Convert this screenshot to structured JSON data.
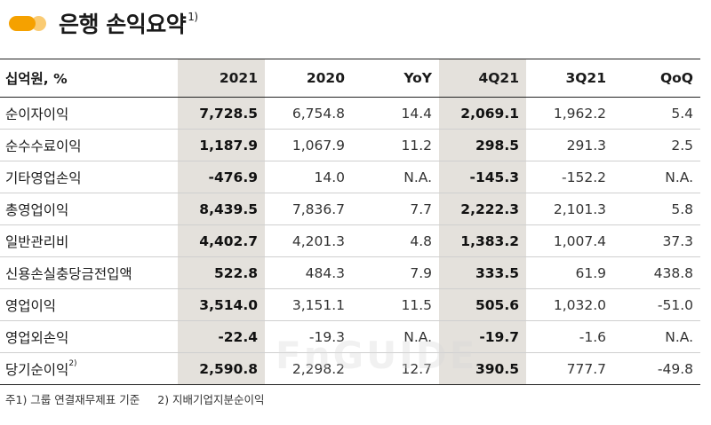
{
  "header": {
    "title": "은행 손익요약",
    "title_note": "1)"
  },
  "table": {
    "unit_label": "십억원, %",
    "columns": [
      "2021",
      "2020",
      "YoY",
      "4Q21",
      "3Q21",
      "QoQ"
    ],
    "rows": [
      {
        "label": "순이자이익",
        "note": "",
        "values": [
          "7,728.5",
          "6,754.8",
          "14.4",
          "2,069.1",
          "1,962.2",
          "5.4"
        ]
      },
      {
        "label": "순수수료이익",
        "note": "",
        "values": [
          "1,187.9",
          "1,067.9",
          "11.2",
          "298.5",
          "291.3",
          "2.5"
        ]
      },
      {
        "label": "기타영업손익",
        "note": "",
        "values": [
          "-476.9",
          "14.0",
          "N.A.",
          "-145.3",
          "-152.2",
          "N.A."
        ]
      },
      {
        "label": "총영업이익",
        "note": "",
        "values": [
          "8,439.5",
          "7,836.7",
          "7.7",
          "2,222.3",
          "2,101.3",
          "5.8"
        ]
      },
      {
        "label": "일반관리비",
        "note": "",
        "values": [
          "4,402.7",
          "4,201.3",
          "4.8",
          "1,383.2",
          "1,007.4",
          "37.3"
        ]
      },
      {
        "label": "신용손실충당금전입액",
        "note": "",
        "values": [
          "522.8",
          "484.3",
          "7.9",
          "333.5",
          "61.9",
          "438.8"
        ]
      },
      {
        "label": "영업이익",
        "note": "",
        "values": [
          "3,514.0",
          "3,151.1",
          "11.5",
          "505.6",
          "1,032.0",
          "-51.0"
        ]
      },
      {
        "label": "영업외손익",
        "note": "",
        "values": [
          "-22.4",
          "-19.3",
          "N.A.",
          "-19.7",
          "-1.6",
          "N.A."
        ]
      },
      {
        "label": "당기순이익",
        "note": "2)",
        "values": [
          "2,590.8",
          "2,298.2",
          "12.7",
          "390.5",
          "777.7",
          "-49.8"
        ]
      }
    ]
  },
  "footnotes": {
    "note1": "주1) 그룹 연결재무제표 기준",
    "note2": "2) 지배기업지분순이익"
  },
  "colors": {
    "accent": "#f5a100",
    "shade": "#e4e1dc"
  }
}
